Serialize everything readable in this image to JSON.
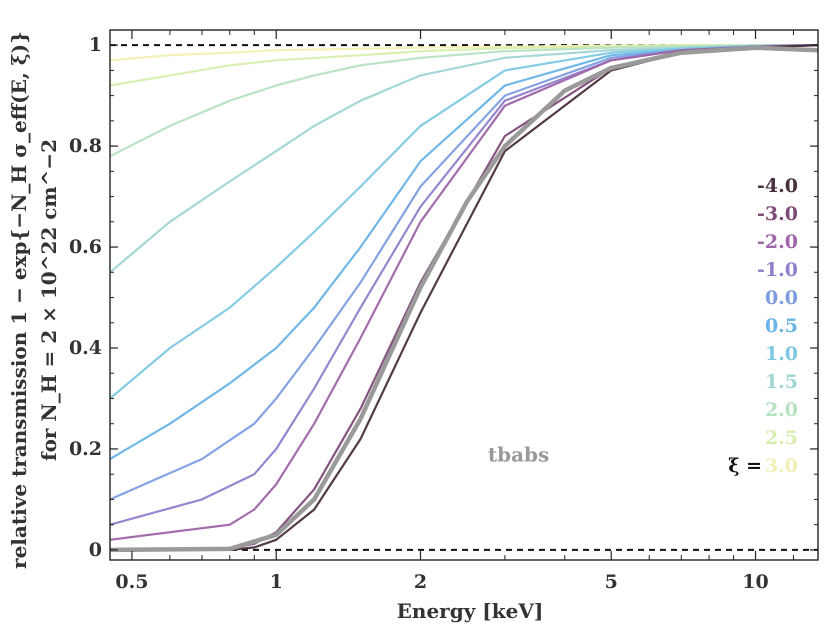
{
  "chart_data": {
    "type": "line",
    "xlabel": "Energy [keV]",
    "ylabel_line1": "relative transmission 1 − exp{−N_H σ_eff(E, ξ)}",
    "ylabel_line2": "for N_H = 2 × 10^22 cm^−2",
    "x_scale": "log",
    "xlim": [
      0.45,
      13.5
    ],
    "ylim": [
      -0.02,
      1.03
    ],
    "x_ticks": [
      0.5,
      1,
      2,
      5,
      10
    ],
    "x_tick_labels": [
      "0.5",
      "1",
      "2",
      "5",
      "10"
    ],
    "y_ticks": [
      0,
      0.2,
      0.4,
      0.6,
      0.8,
      1
    ],
    "y_tick_labels": [
      "0",
      "0.2",
      "0.4",
      "0.6",
      "0.8",
      "1"
    ],
    "reference_lines_y": [
      0,
      1
    ],
    "legend_title": "ξ =",
    "legend_position": "right",
    "annotation": {
      "text": "tbabs",
      "x": 2.9,
      "y": 0.175,
      "color": "#999999"
    },
    "series": [
      {
        "name": "-4.0",
        "color": "#4a2f3e",
        "x": [
          0.45,
          0.8,
          0.9,
          1.0,
          1.2,
          1.5,
          2.0,
          3.0,
          5.0,
          7.0,
          10.0,
          13.5
        ],
        "y": [
          0,
          0,
          0.005,
          0.02,
          0.08,
          0.22,
          0.47,
          0.79,
          0.95,
          0.985,
          0.995,
          1.0
        ]
      },
      {
        "name": "-3.0",
        "color": "#7e4a78",
        "x": [
          0.45,
          0.8,
          0.9,
          1.0,
          1.2,
          1.5,
          2.0,
          3.0,
          5.0,
          7.0,
          10.0,
          13.5
        ],
        "y": [
          0,
          0.003,
          0.012,
          0.035,
          0.12,
          0.28,
          0.53,
          0.82,
          0.955,
          0.988,
          0.996,
          1.0
        ]
      },
      {
        "name": "-2.0",
        "color": "#9e65a8",
        "x": [
          0.45,
          0.8,
          0.9,
          1.0,
          1.2,
          1.5,
          2.0,
          3.0,
          5.0,
          7.0,
          10.0,
          13.5
        ],
        "y": [
          0.02,
          0.05,
          0.08,
          0.13,
          0.25,
          0.42,
          0.65,
          0.88,
          0.97,
          0.99,
          0.997,
          1.0
        ]
      },
      {
        "name": "-1.0",
        "color": "#9180cc",
        "x": [
          0.45,
          0.7,
          0.9,
          1.0,
          1.2,
          1.5,
          2.0,
          3.0,
          5.0,
          7.0,
          10.0,
          13.5
        ],
        "y": [
          0.05,
          0.1,
          0.15,
          0.2,
          0.32,
          0.48,
          0.68,
          0.89,
          0.97,
          0.99,
          0.997,
          1.0
        ]
      },
      {
        "name": "0.0",
        "color": "#7e9de0",
        "x": [
          0.45,
          0.7,
          0.9,
          1.0,
          1.2,
          1.5,
          2.0,
          3.0,
          5.0,
          7.0,
          10.0,
          13.5
        ],
        "y": [
          0.1,
          0.18,
          0.25,
          0.3,
          0.4,
          0.53,
          0.72,
          0.9,
          0.975,
          0.99,
          0.998,
          1.0
        ]
      },
      {
        "name": "0.5",
        "color": "#68b4e6",
        "x": [
          0.45,
          0.6,
          0.8,
          1.0,
          1.2,
          1.5,
          2.0,
          3.0,
          5.0,
          7.0,
          10.0,
          13.5
        ],
        "y": [
          0.18,
          0.25,
          0.33,
          0.4,
          0.48,
          0.6,
          0.77,
          0.92,
          0.98,
          0.99,
          0.998,
          1.0
        ]
      },
      {
        "name": "1.0",
        "color": "#7ec8e3",
        "x": [
          0.45,
          0.6,
          0.8,
          1.0,
          1.2,
          1.5,
          2.0,
          3.0,
          5.0,
          7.0,
          10.0,
          13.5
        ],
        "y": [
          0.3,
          0.4,
          0.48,
          0.56,
          0.63,
          0.72,
          0.84,
          0.95,
          0.985,
          0.993,
          0.998,
          1.0
        ]
      },
      {
        "name": "1.5",
        "color": "#9fd6d4",
        "x": [
          0.45,
          0.6,
          0.8,
          1.0,
          1.2,
          1.5,
          2.0,
          3.0,
          5.0,
          7.0,
          10.0,
          13.5
        ],
        "y": [
          0.55,
          0.65,
          0.73,
          0.79,
          0.84,
          0.89,
          0.94,
          0.975,
          0.99,
          0.995,
          0.999,
          1.0
        ]
      },
      {
        "name": "2.0",
        "color": "#b7e2c2",
        "x": [
          0.45,
          0.6,
          0.8,
          1.0,
          1.2,
          1.5,
          2.0,
          3.0,
          5.0,
          7.0,
          10.0,
          13.5
        ],
        "y": [
          0.78,
          0.84,
          0.89,
          0.92,
          0.94,
          0.96,
          0.975,
          0.988,
          0.995,
          0.998,
          0.999,
          1.0
        ]
      },
      {
        "name": "2.5",
        "color": "#d8eeae",
        "x": [
          0.45,
          0.6,
          0.8,
          1.0,
          1.5,
          2.0,
          3.0,
          5.0,
          7.0,
          10.0,
          13.5
        ],
        "y": [
          0.92,
          0.94,
          0.96,
          0.97,
          0.98,
          0.988,
          0.994,
          0.997,
          0.999,
          1.0,
          1.0
        ]
      },
      {
        "name": "3.0",
        "color": "#f2f0b4",
        "x": [
          0.45,
          0.6,
          0.8,
          1.0,
          1.5,
          2.0,
          3.0,
          5.0,
          7.0,
          10.0,
          13.5
        ],
        "y": [
          0.97,
          0.98,
          0.985,
          0.99,
          0.993,
          0.995,
          0.997,
          0.999,
          1.0,
          1.0,
          1.0
        ]
      }
    ],
    "tbabs": {
      "color": "#9a9a9a",
      "x": [
        0.45,
        0.8,
        1.0,
        1.2,
        1.5,
        2.0,
        2.5,
        3.0,
        4.0,
        5.0,
        7.0,
        10.0,
        13.5
      ],
      "y": [
        0,
        0.002,
        0.03,
        0.1,
        0.26,
        0.52,
        0.69,
        0.8,
        0.91,
        0.955,
        0.985,
        0.995,
        0.99
      ]
    }
  }
}
